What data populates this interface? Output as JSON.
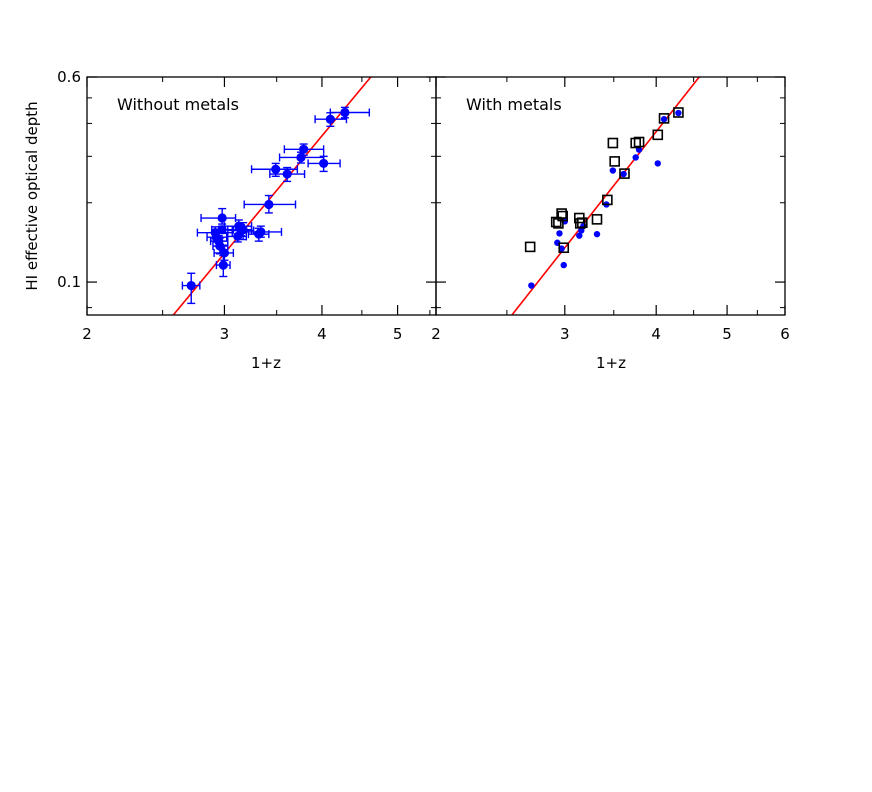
{
  "chart_data": [
    {
      "type": "scatter",
      "panel_label": "Without metals",
      "xlabel": "1+z",
      "ylabel": "HI effective optical depth",
      "xscale": "log",
      "yscale": "log",
      "xlim": [
        2,
        5.6
      ],
      "ylim": [
        0.075,
        0.6
      ],
      "xtick_labels": [
        "2",
        "3",
        "4",
        "5"
      ],
      "xticks": [
        2,
        3,
        4,
        5
      ],
      "ytick_labels": [
        "0.1",
        "0.6"
      ],
      "yticks": [
        0.1,
        0.6
      ],
      "grid": false,
      "fit_line": {
        "color": "#ff0000",
        "points": [
          [
            2.58,
            0.075
          ],
          [
            4.62,
            0.6
          ]
        ]
      },
      "series": [
        {
          "marker": "filled-circle",
          "color": "#0000ff",
          "points": [
            {
              "x": 2.72,
              "y": 0.097,
              "xlo": 2.65,
              "xhi": 2.79,
              "ylo": 0.083,
              "yhi": 0.108
            },
            {
              "x": 2.92,
              "y": 0.154,
              "xlo": 2.77,
              "xhi": 3.07,
              "ylo": 0.146,
              "yhi": 0.162
            },
            {
              "x": 2.93,
              "y": 0.148,
              "xlo": 2.85,
              "xhi": 3.02,
              "ylo": 0.142,
              "yhi": 0.155
            },
            {
              "x": 2.95,
              "y": 0.143,
              "xlo": 2.88,
              "xhi": 3.03,
              "ylo": 0.137,
              "yhi": 0.15
            },
            {
              "x": 2.96,
              "y": 0.137,
              "xlo": 2.9,
              "xhi": 3.03,
              "ylo": 0.128,
              "yhi": 0.147
            },
            {
              "x": 2.98,
              "y": 0.175,
              "xlo": 2.8,
              "xhi": 3.1,
              "ylo": 0.166,
              "yhi": 0.19
            },
            {
              "x": 2.98,
              "y": 0.158,
              "xlo": 2.89,
              "xhi": 3.07,
              "ylo": 0.153,
              "yhi": 0.163
            },
            {
              "x": 2.99,
              "y": 0.116,
              "xlo": 2.93,
              "xhi": 3.05,
              "ylo": 0.105,
              "yhi": 0.126
            },
            {
              "x": 3.0,
              "y": 0.129,
              "xlo": 2.91,
              "xhi": 3.08,
              "ylo": 0.121,
              "yhi": 0.138
            },
            {
              "x": 3.12,
              "y": 0.149,
              "xlo": 3.03,
              "xhi": 3.2,
              "ylo": 0.142,
              "yhi": 0.157
            },
            {
              "x": 3.13,
              "y": 0.163,
              "xlo": 3.0,
              "xhi": 3.25,
              "ylo": 0.153,
              "yhi": 0.172
            },
            {
              "x": 3.15,
              "y": 0.157,
              "xlo": 3.03,
              "xhi": 3.27,
              "ylo": 0.15,
              "yhi": 0.165
            },
            {
              "x": 3.17,
              "y": 0.158,
              "xlo": 3.08,
              "xhi": 3.25,
              "ylo": 0.145,
              "yhi": 0.168
            },
            {
              "x": 3.32,
              "y": 0.152,
              "xlo": 3.22,
              "xhi": 3.42,
              "ylo": 0.143,
              "yhi": 0.16
            },
            {
              "x": 3.34,
              "y": 0.155,
              "xlo": 3.13,
              "xhi": 3.55,
              "ylo": 0.148,
              "yhi": 0.163
            },
            {
              "x": 3.42,
              "y": 0.197,
              "xlo": 3.18,
              "xhi": 3.7,
              "ylo": 0.183,
              "yhi": 0.213
            },
            {
              "x": 3.49,
              "y": 0.268,
              "xlo": 3.25,
              "xhi": 3.72,
              "ylo": 0.252,
              "yhi": 0.282
            },
            {
              "x": 3.61,
              "y": 0.257,
              "xlo": 3.43,
              "xhi": 3.8,
              "ylo": 0.241,
              "yhi": 0.272
            },
            {
              "x": 3.76,
              "y": 0.297,
              "xlo": 3.53,
              "xhi": 4.02,
              "ylo": 0.283,
              "yhi": 0.311
            },
            {
              "x": 3.79,
              "y": 0.319,
              "xlo": 3.58,
              "xhi": 4.02,
              "ylo": 0.303,
              "yhi": 0.334
            },
            {
              "x": 4.02,
              "y": 0.282,
              "xlo": 3.84,
              "xhi": 4.22,
              "ylo": 0.263,
              "yhi": 0.3
            },
            {
              "x": 4.1,
              "y": 0.415,
              "xlo": 3.92,
              "xhi": 4.3,
              "ylo": 0.39,
              "yhi": 0.439
            },
            {
              "x": 4.28,
              "y": 0.44,
              "xlo": 4.1,
              "xhi": 4.6,
              "ylo": 0.42,
              "yhi": 0.46
            }
          ]
        }
      ]
    },
    {
      "type": "scatter",
      "panel_label": "With metals",
      "xlabel": "1+z",
      "xscale": "log",
      "yscale": "log",
      "xlim": [
        2,
        6
      ],
      "ylim": [
        0.075,
        0.6
      ],
      "xtick_labels": [
        "2",
        "3",
        "4",
        "5",
        "6"
      ],
      "xticks": [
        2,
        3,
        4,
        5,
        6
      ],
      "grid": false,
      "fit_line": {
        "color": "#ff0000",
        "points": [
          [
            2.54,
            0.075
          ],
          [
            4.58,
            0.6
          ]
        ]
      },
      "series": [
        {
          "marker": "filled-circle",
          "color": "#0000ff",
          "points": [
            {
              "x": 2.7,
              "y": 0.097
            },
            {
              "x": 2.93,
              "y": 0.141
            },
            {
              "x": 2.95,
              "y": 0.153
            },
            {
              "x": 2.97,
              "y": 0.134
            },
            {
              "x": 2.99,
              "y": 0.116
            },
            {
              "x": 3.0,
              "y": 0.17
            },
            {
              "x": 3.14,
              "y": 0.15
            },
            {
              "x": 3.16,
              "y": 0.157
            },
            {
              "x": 3.18,
              "y": 0.163
            },
            {
              "x": 3.32,
              "y": 0.152
            },
            {
              "x": 3.42,
              "y": 0.197
            },
            {
              "x": 3.49,
              "y": 0.265
            },
            {
              "x": 3.61,
              "y": 0.257
            },
            {
              "x": 3.75,
              "y": 0.297
            },
            {
              "x": 3.79,
              "y": 0.318
            },
            {
              "x": 4.02,
              "y": 0.282
            },
            {
              "x": 4.1,
              "y": 0.415
            },
            {
              "x": 4.29,
              "y": 0.438
            }
          ]
        },
        {
          "marker": "open-square",
          "color": "#000000",
          "points": [
            {
              "x": 2.69,
              "y": 0.136
            },
            {
              "x": 2.92,
              "y": 0.169
            },
            {
              "x": 2.94,
              "y": 0.167
            },
            {
              "x": 2.97,
              "y": 0.182
            },
            {
              "x": 2.98,
              "y": 0.178
            },
            {
              "x": 2.99,
              "y": 0.135
            },
            {
              "x": 3.14,
              "y": 0.175
            },
            {
              "x": 3.15,
              "y": 0.167
            },
            {
              "x": 3.17,
              "y": 0.168
            },
            {
              "x": 3.32,
              "y": 0.173
            },
            {
              "x": 3.43,
              "y": 0.205
            },
            {
              "x": 3.49,
              "y": 0.337
            },
            {
              "x": 3.51,
              "y": 0.287
            },
            {
              "x": 3.62,
              "y": 0.258
            },
            {
              "x": 3.75,
              "y": 0.337
            },
            {
              "x": 3.79,
              "y": 0.34
            },
            {
              "x": 4.02,
              "y": 0.362
            },
            {
              "x": 4.1,
              "y": 0.418
            },
            {
              "x": 4.29,
              "y": 0.44
            }
          ]
        }
      ]
    }
  ]
}
